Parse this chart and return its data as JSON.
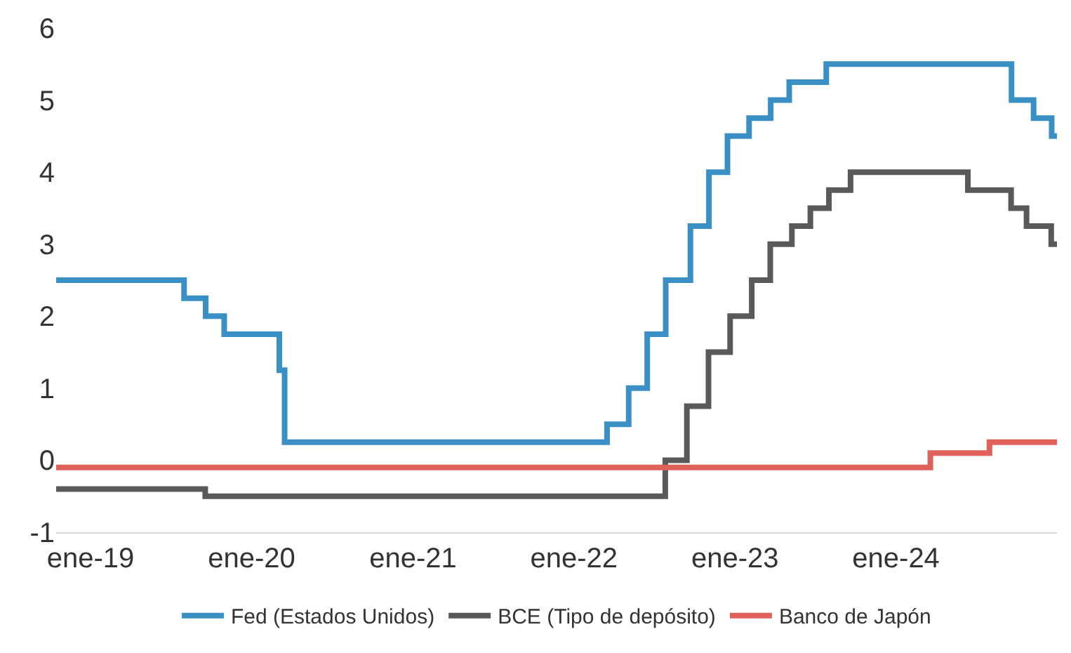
{
  "chart_data": {
    "type": "step",
    "xlim": [
      "2018-10-15",
      "2024-12-31"
    ],
    "ylim": [
      -1,
      6
    ],
    "yticks": [
      -1,
      0,
      1,
      2,
      3,
      4,
      5,
      6
    ],
    "xticks": [
      {
        "value": "2019-01-01",
        "label": "ene-19"
      },
      {
        "value": "2020-01-01",
        "label": "ene-20"
      },
      {
        "value": "2021-01-01",
        "label": "ene-21"
      },
      {
        "value": "2022-01-01",
        "label": "ene-22"
      },
      {
        "value": "2023-01-01",
        "label": "ene-23"
      },
      {
        "value": "2024-01-01",
        "label": "ene-24"
      }
    ],
    "legend": "bottom",
    "marker": "none",
    "line_style": "solid",
    "series": [
      {
        "name": "Fed (Estados Unidos)",
        "color": "#3a8fc4",
        "x": [
          "2018-10-15",
          "2019-08-01",
          "2019-09-19",
          "2019-10-31",
          "2020-03-04",
          "2020-03-16",
          "2022-03-17",
          "2022-05-05",
          "2022-06-16",
          "2022-07-28",
          "2022-09-22",
          "2022-11-03",
          "2022-12-15",
          "2023-02-02",
          "2023-03-23",
          "2023-05-04",
          "2023-07-27",
          "2024-09-19",
          "2024-11-08",
          "2024-12-19",
          "2024-12-31"
        ],
        "values": [
          2.5,
          2.25,
          2.0,
          1.75,
          1.25,
          0.25,
          0.5,
          1.0,
          1.75,
          2.5,
          3.25,
          4.0,
          4.5,
          4.75,
          5.0,
          5.25,
          5.5,
          5.0,
          4.75,
          4.5,
          4.5
        ]
      },
      {
        "name": "BCE (Tipo de depósito)",
        "color": "#595959",
        "x": [
          "2018-10-15",
          "2019-09-18",
          "2022-07-27",
          "2022-09-14",
          "2022-11-02",
          "2022-12-21",
          "2023-02-08",
          "2023-03-22",
          "2023-05-10",
          "2023-06-21",
          "2023-08-02",
          "2023-09-20",
          "2024-06-12",
          "2024-09-18",
          "2024-10-23",
          "2024-12-18",
          "2024-12-31"
        ],
        "values": [
          -0.4,
          -0.5,
          0.0,
          0.75,
          1.5,
          2.0,
          2.5,
          3.0,
          3.25,
          3.5,
          3.75,
          4.0,
          3.75,
          3.5,
          3.25,
          3.0,
          3.0
        ]
      },
      {
        "name": "Banco de Japón",
        "color": "#e0605a",
        "x": [
          "2018-10-15",
          "2024-03-19",
          "2024-07-31",
          "2024-12-31"
        ],
        "values": [
          -0.1,
          0.1,
          0.25,
          0.25
        ]
      }
    ]
  }
}
